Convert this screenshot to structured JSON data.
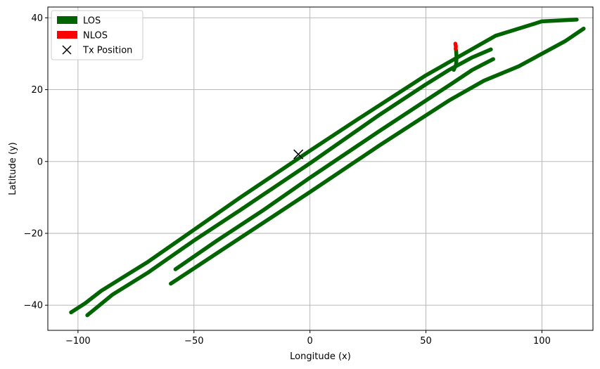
{
  "chart_data": {
    "type": "scatter",
    "xlabel": "Longitude (x)",
    "ylabel": "Latitude (y)",
    "xlim": [
      -113,
      122
    ],
    "ylim": [
      -47,
      43
    ],
    "xticks": [
      -100,
      -50,
      0,
      50,
      100
    ],
    "yticks": [
      -40,
      -20,
      0,
      20,
      40
    ],
    "xtick_labels": [
      "−100",
      "−50",
      "0",
      "50",
      "100"
    ],
    "ytick_labels": [
      "−40",
      "−20",
      "0",
      "20",
      "40"
    ],
    "grid": true,
    "legend_position": "top-left",
    "legend": [
      {
        "label": "LOS",
        "kind": "patch",
        "color": "#006400"
      },
      {
        "label": "NLOS",
        "kind": "patch",
        "color": "#ff0000"
      },
      {
        "label": "Tx Position",
        "kind": "marker",
        "marker": "x",
        "color": "#000000"
      }
    ],
    "tx_position": {
      "x": -5,
      "y": 2
    },
    "series": [
      {
        "color": "#006400",
        "path": [
          [
            -103,
            -42
          ],
          [
            -97,
            -39.5
          ],
          [
            -90,
            -36
          ],
          [
            -80,
            -32
          ],
          [
            -70,
            -28
          ],
          [
            -50,
            -19
          ],
          [
            -30,
            -10
          ],
          [
            0,
            3
          ],
          [
            20,
            11.5
          ],
          [
            50,
            24
          ],
          [
            80,
            35
          ],
          [
            100,
            39
          ],
          [
            115,
            39.5
          ]
        ]
      },
      {
        "color": "#006400",
        "path": [
          [
            -96,
            -42.8
          ],
          [
            -85,
            -37
          ],
          [
            -70,
            -31
          ],
          [
            -50,
            -22
          ],
          [
            -30,
            -13.5
          ],
          [
            0,
            -0.5
          ],
          [
            30,
            13
          ],
          [
            50,
            21.5
          ],
          [
            60,
            25.5
          ],
          [
            70,
            29
          ],
          [
            78,
            31.2
          ]
        ]
      },
      {
        "color": "#006400",
        "path": [
          [
            -58,
            -30
          ],
          [
            -40,
            -22
          ],
          [
            -20,
            -13.5
          ],
          [
            0,
            -4.5
          ],
          [
            30,
            8.5
          ],
          [
            50,
            17
          ],
          [
            60,
            21.2
          ],
          [
            70,
            25.5
          ],
          [
            79,
            28.5
          ]
        ]
      },
      {
        "color": "#006400",
        "path": [
          [
            -60,
            -34
          ],
          [
            -40,
            -25.5
          ],
          [
            -20,
            -17
          ],
          [
            0,
            -8.5
          ],
          [
            30,
            4.5
          ],
          [
            60,
            17
          ],
          [
            75,
            22.5
          ],
          [
            90,
            26.5
          ],
          [
            110,
            33.5
          ],
          [
            118,
            37
          ]
        ]
      },
      {
        "color": "#006400",
        "path": [
          [
            62,
            25.5
          ],
          [
            63,
            27
          ],
          [
            63.2,
            29
          ],
          [
            63,
            31
          ]
        ]
      },
      {
        "color": "#ff0000",
        "path": [
          [
            62.8,
            31.3
          ],
          [
            62.9,
            32
          ],
          [
            62.7,
            32.8
          ]
        ]
      }
    ]
  }
}
